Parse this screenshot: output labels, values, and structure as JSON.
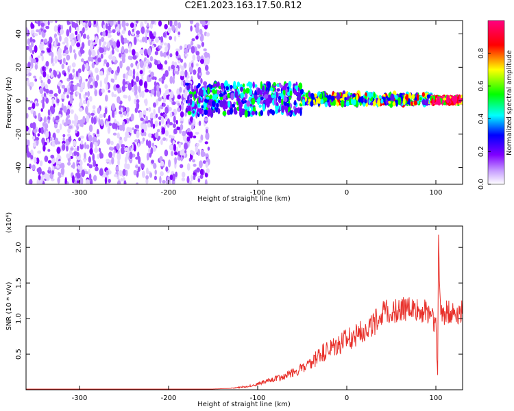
{
  "title": "C2E1.2023.163.17.50.R12",
  "chart_data": [
    {
      "type": "heatmap",
      "xlabel": "Height of straight line (km)",
      "ylabel": "Frequency (Hz)",
      "xlim": [
        -360,
        130
      ],
      "ylim": [
        -50,
        48
      ],
      "x_ticks": [
        -300,
        -200,
        -100,
        0,
        100
      ],
      "y_ticks": [
        -40,
        -20,
        0,
        20,
        40
      ],
      "colorbar": {
        "label": "Normalized spectral amplitude",
        "range": [
          0.0,
          1.0
        ],
        "ticks": [
          0.0,
          0.2,
          0.4,
          0.6,
          0.8
        ],
        "colormap": [
          "#ffffff",
          "#8000ff",
          "#0000ff",
          "#00ffff",
          "#00ff00",
          "#ffff00",
          "#ff0000",
          "#ff0080"
        ]
      },
      "regions": [
        {
          "x_range": [
            -360,
            -155
          ],
          "f_range": [
            -50,
            48
          ],
          "amplitude": 0.15
        },
        {
          "x_range": [
            -180,
            -50
          ],
          "f_range": [
            -8,
            10
          ],
          "amplitude": 0.45
        },
        {
          "x_range": [
            -50,
            95
          ],
          "f_range": [
            -2,
            4
          ],
          "amplitude": 0.6
        },
        {
          "x_range": [
            95,
            130
          ],
          "f_range": [
            -1,
            1.5
          ],
          "amplitude": 0.9
        }
      ]
    },
    {
      "type": "line",
      "xlabel": "Height of straight line (km)",
      "ylabel": "SNR (10 * v/v)",
      "y_scale_label": "(x10⁴)",
      "xlim": [
        -360,
        130
      ],
      "ylim": [
        0,
        2.3
      ],
      "x_ticks": [
        -300,
        -200,
        -100,
        0,
        100
      ],
      "y_ticks": [
        0.5,
        1.0,
        1.5,
        2.0
      ],
      "color": "#e8302a",
      "series": [
        {
          "x": [
            -360,
            -300,
            -200,
            -150,
            -130,
            -110,
            -100,
            -90,
            -80,
            -70,
            -60,
            -50,
            -40,
            -30,
            -20,
            -10,
            0,
            10,
            20,
            30,
            40,
            50,
            60,
            70,
            80,
            90,
            95,
            100,
            102,
            103,
            105,
            110,
            120,
            130
          ],
          "y": [
            0.01,
            0.01,
            0.01,
            0.01,
            0.02,
            0.05,
            0.08,
            0.12,
            0.16,
            0.18,
            0.25,
            0.3,
            0.35,
            0.5,
            0.55,
            0.62,
            0.68,
            0.78,
            0.85,
            0.92,
            1.08,
            1.1,
            1.12,
            1.15,
            1.12,
            1.1,
            1.1,
            0.9,
            0.18,
            2.25,
            1.1,
            1.08,
            1.09,
            1.09
          ]
        }
      ]
    }
  ]
}
